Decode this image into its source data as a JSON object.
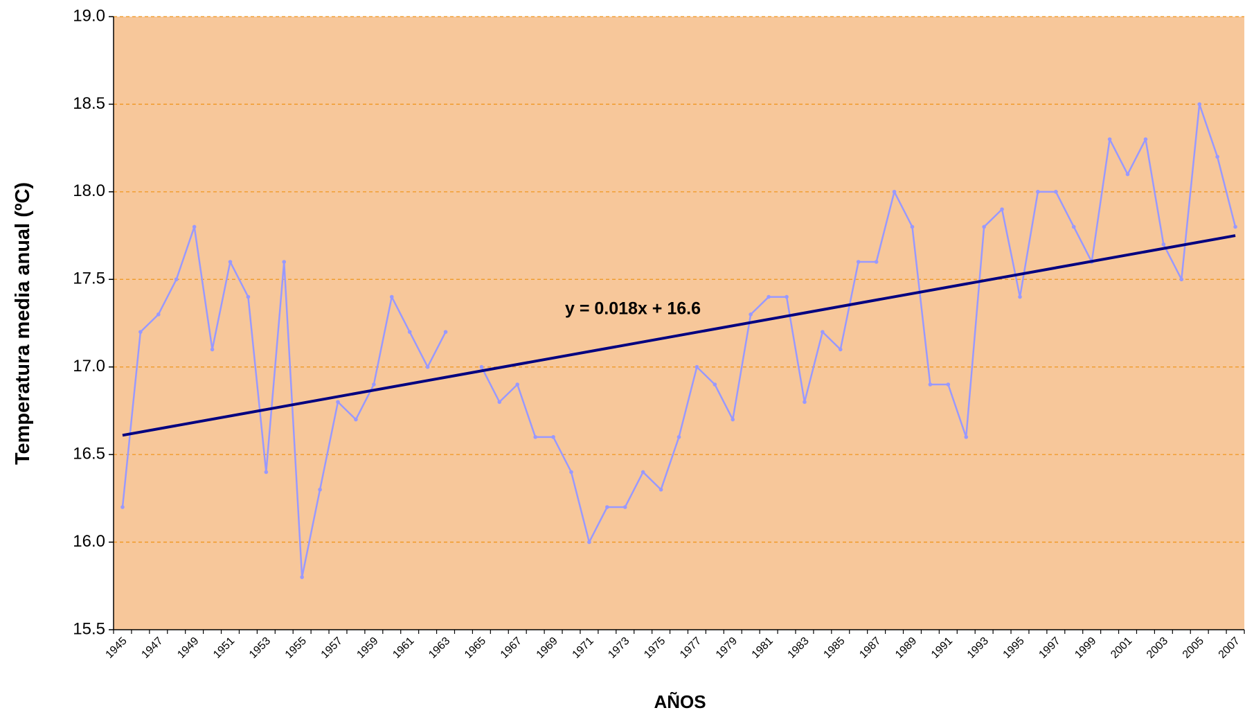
{
  "chart_data": {
    "type": "line",
    "x_label": "AÑOS",
    "y_label": "Temperatura media anual (ºC)",
    "categories": [
      "1945",
      null,
      "1947",
      null,
      "1949",
      null,
      "1951",
      null,
      "1953",
      null,
      "1955",
      null,
      "1957",
      null,
      "1959",
      null,
      "1961",
      null,
      "1963",
      null,
      "1965",
      null,
      "1967",
      null,
      "1969",
      null,
      "1971",
      null,
      "1973",
      null,
      "1975",
      null,
      "1977",
      null,
      "1979",
      null,
      "1981",
      null,
      "1983",
      null,
      "1985",
      null,
      "1987",
      null,
      "1989",
      null,
      "1991",
      null,
      "1993",
      null,
      "1995",
      null,
      "1997",
      null,
      "1999",
      null,
      "2001",
      null,
      "2003",
      null,
      "2005",
      null,
      "2007"
    ],
    "series": [
      {
        "color": "#9999ff",
        "values": [
          16.2,
          17.2,
          17.3,
          17.5,
          17.8,
          17.1,
          17.6,
          17.4,
          16.4,
          17.6,
          15.8,
          16.3,
          16.8,
          16.7,
          16.9,
          17.4,
          17.2,
          17.0,
          17.2,
          null,
          17.0,
          16.8,
          16.9,
          16.6,
          16.6,
          16.4,
          16.0,
          16.2,
          16.2,
          16.4,
          16.3,
          16.6,
          17.0,
          16.9,
          16.7,
          17.3,
          17.4,
          17.4,
          16.8,
          17.2,
          17.1,
          17.6,
          17.6,
          18.0,
          17.8,
          16.9,
          16.9,
          16.6,
          17.8,
          17.9,
          17.4,
          18.0,
          18.0,
          17.8,
          17.6,
          18.3,
          18.1,
          18.3,
          17.7,
          17.5,
          18.5,
          18.2,
          17.8
        ]
      }
    ],
    "trendline": {
      "label": "y = 0.018x + 16.6",
      "color": "#000080",
      "values": [
        16.61,
        17.75
      ]
    },
    "ylim": [
      15.5,
      19
    ],
    "yticks": [
      15.5,
      {
        "value": 16,
        "label": "16.0"
      },
      16.5,
      {
        "value": 17,
        "label": "17.0"
      },
      17.5,
      {
        "value": 18,
        "label": "18.0"
      },
      18.5,
      {
        "value": 19,
        "label": "19.0"
      }
    ],
    "grid": true,
    "background": "#f7c79a",
    "grid_color": "#f0961e"
  }
}
